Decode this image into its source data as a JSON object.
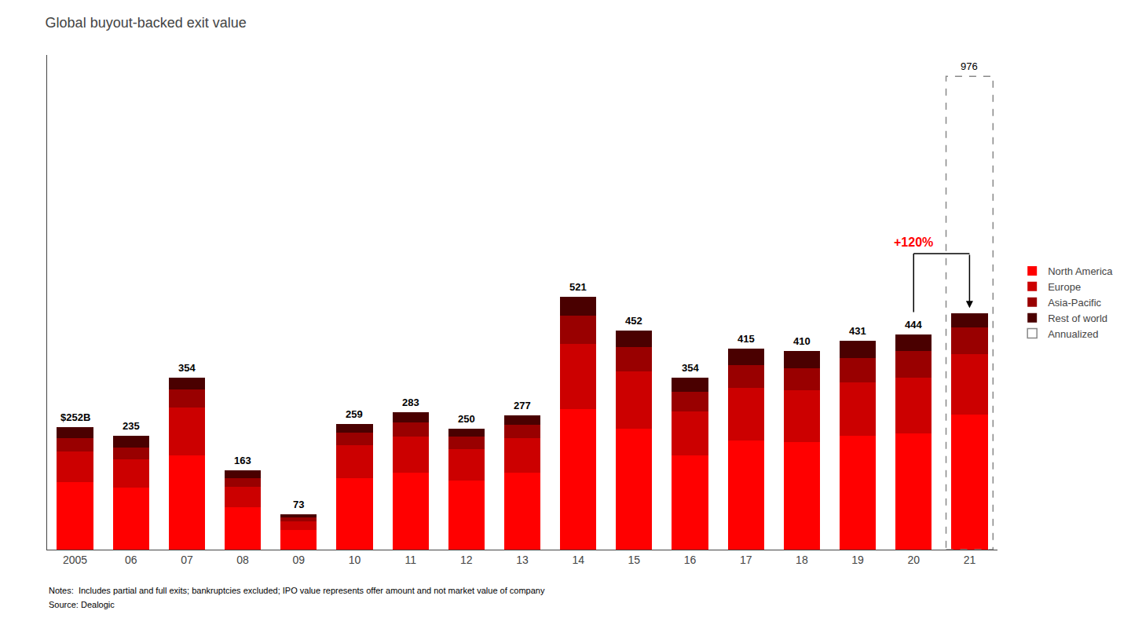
{
  "chart_data": {
    "type": "bar",
    "stacked": true,
    "title": "Global buyout-backed exit value",
    "categories": [
      "2005",
      "06",
      "07",
      "08",
      "09",
      "10",
      "11",
      "12",
      "13",
      "14",
      "15",
      "16",
      "17",
      "18",
      "19",
      "20",
      "21"
    ],
    "series": [
      {
        "name": "North America",
        "color": "#ff0000",
        "values": [
          140,
          128,
          195,
          88,
          40,
          148,
          158,
          142,
          158,
          290,
          250,
          195,
          225,
          222,
          235,
          240,
          278
        ]
      },
      {
        "name": "Europe",
        "color": "#cc0000",
        "values": [
          62,
          58,
          98,
          42,
          18,
          68,
          75,
          65,
          72,
          135,
          118,
          90,
          108,
          106,
          110,
          115,
          125
        ]
      },
      {
        "name": "Asia-Pacific",
        "color": "#990000",
        "values": [
          28,
          25,
          38,
          18,
          8,
          26,
          30,
          26,
          28,
          58,
          50,
          40,
          48,
          46,
          50,
          54,
          55
        ]
      },
      {
        "name": "Rest of world",
        "color": "#4a0000",
        "values": [
          22,
          24,
          23,
          15,
          7,
          17,
          20,
          17,
          19,
          38,
          34,
          29,
          34,
          36,
          36,
          35,
          30
        ]
      },
      {
        "name": "Annualized",
        "type": "outline",
        "line_style": "dashed",
        "color": "#888888",
        "data_labels": true,
        "values": [
          null,
          null,
          null,
          null,
          null,
          null,
          null,
          null,
          null,
          null,
          null,
          null,
          null,
          null,
          null,
          null,
          976
        ]
      }
    ],
    "totals": [
      252,
      235,
      354,
      163,
      73,
      259,
      283,
      250,
      277,
      521,
      452,
      354,
      415,
      410,
      431,
      444,
      null
    ],
    "total_labels": [
      "$252B",
      "235",
      "354",
      "163",
      "73",
      "259",
      "283",
      "250",
      "277",
      "521",
      "452",
      "354",
      "415",
      "410",
      "431",
      "444",
      null
    ],
    "annotations": [
      {
        "text": "+120%",
        "color": "red",
        "from": "20",
        "to": "21"
      }
    ],
    "notes": [
      "Notes:  Includes partial and full exits; bankruptcies excluded; IPO value represents offer amount and not market value of company",
      "Source: Dealogic"
    ],
    "ylim": [
      0,
      1020
    ],
    "tick_labels": "x",
    "grid": false,
    "legend": "right"
  }
}
